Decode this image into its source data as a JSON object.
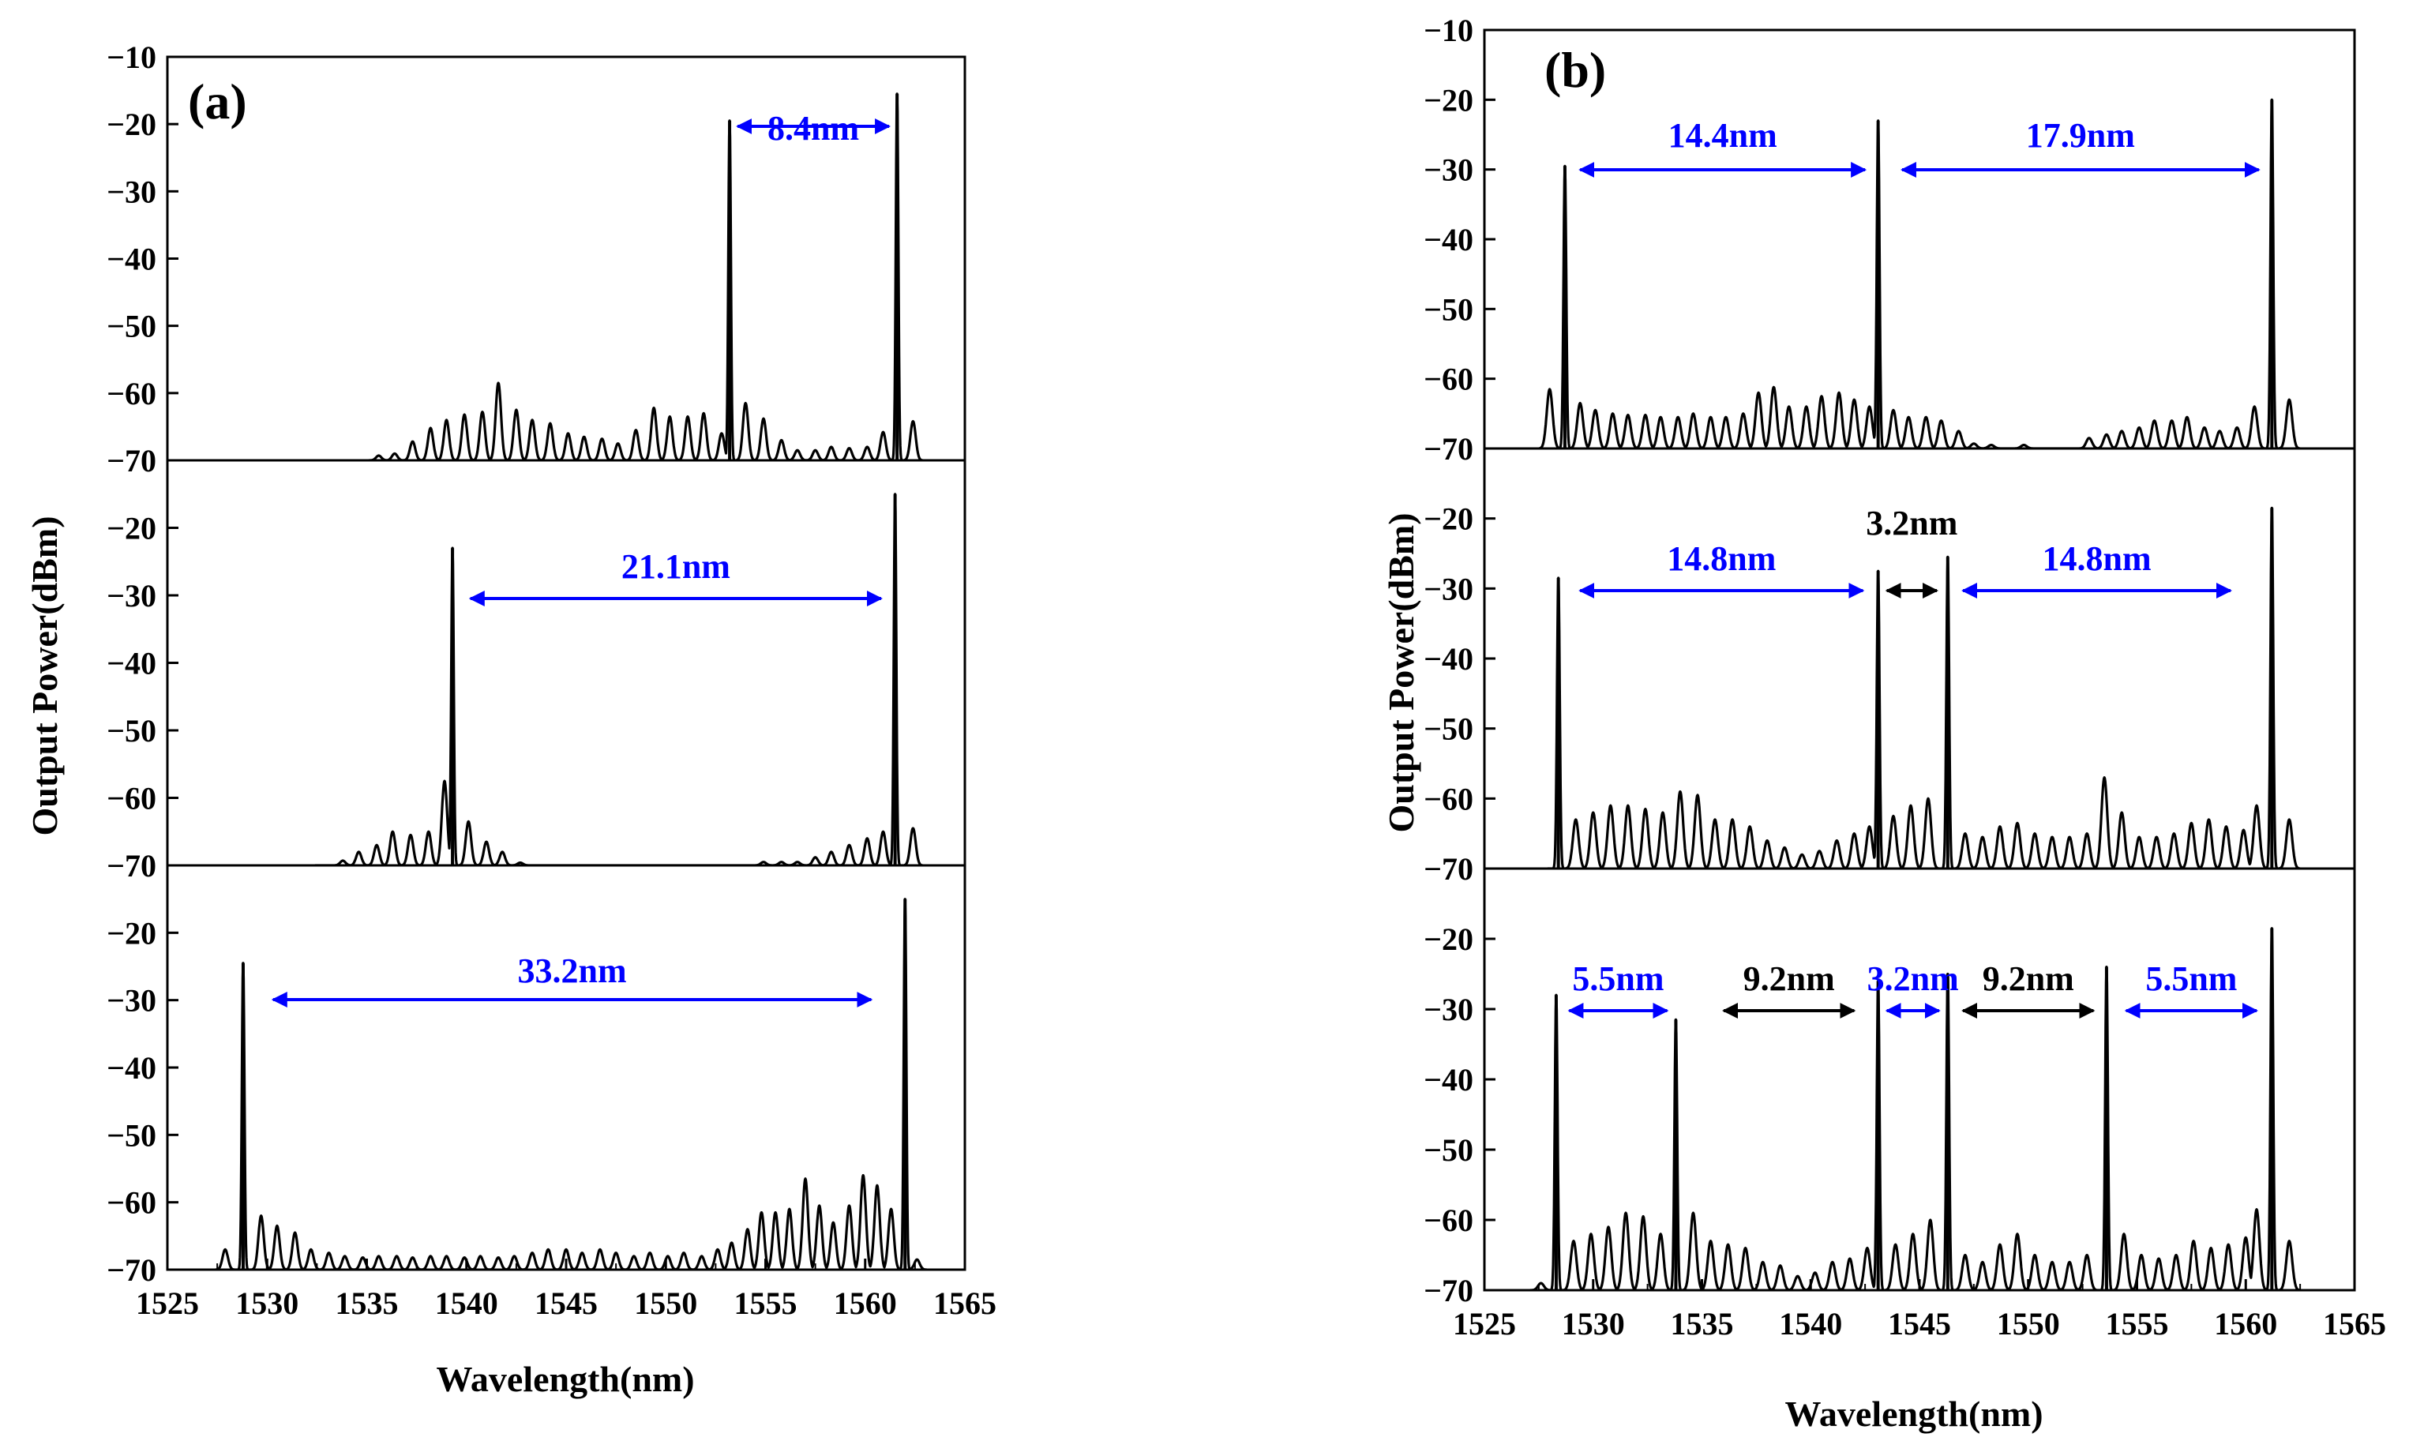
{
  "colors": {
    "spectrum": "#000000",
    "annotation_blue": "#0000ff",
    "annotation_black": "#000000"
  },
  "chart_data": [
    {
      "panel": "(a)",
      "type": "line",
      "xlabel": "Wavelength(nm)",
      "ylabel": "Output Power(dBm)",
      "xlim": [
        1525,
        1565
      ],
      "x_ticks": [
        "1525",
        "1530",
        "1535",
        "1540",
        "1545",
        "1550",
        "1555",
        "1560",
        "1565"
      ],
      "subplots": [
        {
          "name": "a-top",
          "ylim": [
            -70,
            -10
          ],
          "y_ticks": [
            "−10",
            "−20",
            "−30",
            "−40",
            "−50",
            "−60",
            "−70"
          ],
          "main_peaks": [
            {
              "x": 1553.2,
              "y": -19.5
            },
            {
              "x": 1561.6,
              "y": -15.5
            }
          ],
          "side_peaks_x": [
            1535.6,
            1536.4,
            1537.3,
            1538.2,
            1539.0,
            1539.9,
            1540.8,
            1541.6,
            1542.5,
            1543.3,
            1544.2,
            1545.1,
            1545.9,
            1546.8,
            1547.6,
            1548.5,
            1549.4,
            1550.2,
            1551.1,
            1551.9,
            1552.8,
            1554.0,
            1554.9,
            1555.8,
            1556.6,
            1557.5,
            1558.3,
            1559.2,
            1560.1,
            1560.9,
            1562.4
          ],
          "side_peaks_y": [
            -69.3,
            -69.0,
            -67.2,
            -65.2,
            -64.0,
            -63.2,
            -62.8,
            -58.5,
            -62.5,
            -64.0,
            -64.5,
            -66.0,
            -66.5,
            -66.8,
            -67.5,
            -65.5,
            -62.2,
            -63.5,
            -63.5,
            -63.0,
            -66.0,
            -61.5,
            -63.8,
            -67.0,
            -68.5,
            -68.5,
            -68.0,
            -68.2,
            -68.0,
            -65.8,
            -64.2
          ],
          "annotations": [
            {
              "text": "8.4nm",
              "color": "blue",
              "arrow_from": 1553.6,
              "arrow_to": 1561.2
            }
          ]
        },
        {
          "name": "a-mid",
          "ylim": [
            -70,
            -10
          ],
          "y_ticks": [
            "−20",
            "−30",
            "−40",
            "−50",
            "−60",
            "−70"
          ],
          "main_peaks": [
            {
              "x": 1539.3,
              "y": -23.0
            },
            {
              "x": 1561.5,
              "y": -15.0
            }
          ],
          "side_peaks_x": [
            1532.9,
            1533.8,
            1534.6,
            1535.5,
            1536.3,
            1537.2,
            1538.1,
            1538.9,
            1540.1,
            1541.0,
            1541.8,
            1542.7,
            1554.9,
            1555.8,
            1556.6,
            1557.5,
            1558.3,
            1559.2,
            1560.1,
            1560.9,
            1562.4
          ],
          "side_peaks_y": [
            -70.0,
            -69.3,
            -68.0,
            -67.0,
            -65.0,
            -65.5,
            -65.0,
            -57.5,
            -63.5,
            -66.5,
            -68.0,
            -69.6,
            -69.5,
            -69.5,
            -69.5,
            -68.8,
            -68.0,
            -67.0,
            -66.0,
            -65.0,
            -64.5
          ],
          "annotations": [
            {
              "text": "21.1nm",
              "color": "blue",
              "arrow_from": 1540.2,
              "arrow_to": 1560.8
            }
          ]
        },
        {
          "name": "a-bot",
          "ylim": [
            -70,
            -10
          ],
          "y_ticks": [
            "−20",
            "−30",
            "−40",
            "−50",
            "−60",
            "−70"
          ],
          "main_peaks": [
            {
              "x": 1528.8,
              "y": -24.5
            },
            {
              "x": 1562.0,
              "y": -15.0
            }
          ],
          "side_peaks_x": [
            1527.9,
            1529.7,
            1530.5,
            1531.4,
            1532.2,
            1533.1,
            1533.9,
            1534.8,
            1535.6,
            1536.5,
            1537.3,
            1538.2,
            1539.0,
            1539.9,
            1540.7,
            1541.6,
            1542.4,
            1543.3,
            1544.1,
            1545.0,
            1545.8,
            1546.7,
            1547.5,
            1548.4,
            1549.2,
            1550.1,
            1550.9,
            1551.8,
            1552.6,
            1553.3,
            1554.1,
            1554.8,
            1555.5,
            1556.2,
            1557.0,
            1557.7,
            1558.4,
            1559.2,
            1559.9,
            1560.6,
            1561.3,
            1562.6
          ],
          "side_peaks_y": [
            -67.0,
            -62.0,
            -63.5,
            -64.5,
            -67.0,
            -67.5,
            -68.0,
            -68.2,
            -68.0,
            -68.0,
            -68.2,
            -68.0,
            -68.0,
            -68.2,
            -68.0,
            -68.2,
            -68.0,
            -67.5,
            -67.0,
            -67.0,
            -67.5,
            -67.0,
            -67.5,
            -68.0,
            -67.5,
            -68.0,
            -67.5,
            -68.0,
            -67.0,
            -66.0,
            -64.0,
            -61.5,
            -61.5,
            -61.0,
            -56.5,
            -60.5,
            -63.0,
            -60.5,
            -56.0,
            -57.5,
            -61.0,
            -68.5
          ],
          "annotations": [
            {
              "text": "33.2nm",
              "color": "blue",
              "arrow_from": 1530.3,
              "arrow_to": 1560.3
            }
          ]
        }
      ]
    },
    {
      "panel": "(b)",
      "type": "line",
      "xlabel": "Wavelength(nm)",
      "ylabel": "Output Power(dBm)",
      "xlim": [
        1525,
        1565
      ],
      "x_ticks": [
        "1525",
        "1530",
        "1535",
        "1540",
        "1545",
        "1550",
        "1555",
        "1560",
        "1565"
      ],
      "subplots": [
        {
          "name": "b-top",
          "ylim": [
            -70,
            -10
          ],
          "y_ticks": [
            "−10",
            "−20",
            "−30",
            "−40",
            "−50",
            "−60",
            "−70"
          ],
          "main_peaks": [
            {
              "x": 1528.7,
              "y": -29.5
            },
            {
              "x": 1543.1,
              "y": -23.0
            },
            {
              "x": 1561.2,
              "y": -20.0
            }
          ],
          "side_peaks_x": [
            1528.0,
            1529.4,
            1530.1,
            1530.9,
            1531.6,
            1532.4,
            1533.1,
            1533.9,
            1534.6,
            1535.4,
            1536.1,
            1536.9,
            1537.6,
            1538.3,
            1539.0,
            1539.8,
            1540.5,
            1541.3,
            1542.0,
            1542.7,
            1543.8,
            1544.5,
            1545.3,
            1546.0,
            1546.8,
            1547.5,
            1548.3,
            1549.8,
            1552.8,
            1553.6,
            1554.3,
            1555.1,
            1555.8,
            1556.6,
            1557.3,
            1558.1,
            1558.8,
            1559.6,
            1560.4,
            1562.0
          ],
          "side_peaks_y": [
            -61.5,
            -63.5,
            -64.5,
            -65.0,
            -65.2,
            -65.2,
            -65.5,
            -65.5,
            -65.0,
            -65.5,
            -65.5,
            -65.0,
            -62.0,
            -61.2,
            -64.0,
            -64.0,
            -62.5,
            -62.0,
            -63.0,
            -64.0,
            -64.5,
            -65.5,
            -65.5,
            -66.0,
            -67.5,
            -69.3,
            -69.5,
            -69.5,
            -68.5,
            -68.0,
            -67.5,
            -67.0,
            -66.0,
            -66.0,
            -65.5,
            -67.0,
            -67.5,
            -67.0,
            -64.0,
            -63.0
          ],
          "annotations": [
            {
              "text": "14.4nm",
              "color": "blue",
              "arrow_from": 1529.4,
              "arrow_to": 1542.5
            },
            {
              "text": "17.9nm",
              "color": "blue",
              "arrow_from": 1544.2,
              "arrow_to": 1560.6
            }
          ]
        },
        {
          "name": "b-mid",
          "ylim": [
            -70,
            -10
          ],
          "y_ticks": [
            "−20",
            "−30",
            "−40",
            "−50",
            "−60",
            "−70"
          ],
          "main_peaks": [
            {
              "x": 1528.4,
              "y": -28.5
            },
            {
              "x": 1543.1,
              "y": -27.5
            },
            {
              "x": 1546.3,
              "y": -25.5
            },
            {
              "x": 1561.2,
              "y": -18.5
            }
          ],
          "side_peaks_x": [
            1529.2,
            1530.0,
            1530.8,
            1531.6,
            1532.4,
            1533.2,
            1534.0,
            1534.8,
            1535.6,
            1536.4,
            1537.2,
            1538.0,
            1538.8,
            1539.6,
            1540.4,
            1541.2,
            1542.0,
            1542.7,
            1543.8,
            1544.6,
            1545.4,
            1547.1,
            1547.9,
            1548.7,
            1549.5,
            1550.3,
            1551.1,
            1551.9,
            1552.7,
            1553.5,
            1554.3,
            1555.1,
            1555.9,
            1556.7,
            1557.5,
            1558.3,
            1559.1,
            1559.9,
            1560.5,
            1562.0
          ],
          "side_peaks_y": [
            -63.0,
            -62.0,
            -61.0,
            -61.0,
            -61.5,
            -62.0,
            -59.0,
            -59.5,
            -63.0,
            -63.0,
            -64.0,
            -66.0,
            -67.0,
            -68.0,
            -67.5,
            -66.0,
            -65.0,
            -64.0,
            -62.5,
            -61.0,
            -60.0,
            -65.0,
            -65.5,
            -64.0,
            -63.5,
            -65.0,
            -65.5,
            -65.5,
            -65.0,
            -57.0,
            -62.0,
            -65.5,
            -65.5,
            -65.0,
            -63.5,
            -63.0,
            -64.0,
            -64.5,
            -61.0,
            -63.0
          ],
          "annotations": [
            {
              "text": "14.8nm",
              "color": "blue",
              "arrow_from": 1529.4,
              "arrow_to": 1542.4
            },
            {
              "text": "3.2nm",
              "color": "black",
              "arrow_from": 1543.5,
              "arrow_to": 1545.8
            },
            {
              "text": "14.8nm",
              "color": "blue",
              "arrow_from": 1547.0,
              "arrow_to": 1559.3
            }
          ]
        },
        {
          "name": "b-bot",
          "ylim": [
            -70,
            -10
          ],
          "y_ticks": [
            "−20",
            "−30",
            "−40",
            "−50",
            "−60",
            "−70"
          ],
          "main_peaks": [
            {
              "x": 1528.3,
              "y": -28.0
            },
            {
              "x": 1533.8,
              "y": -31.5
            },
            {
              "x": 1543.1,
              "y": -26.0
            },
            {
              "x": 1546.3,
              "y": -25.0
            },
            {
              "x": 1553.6,
              "y": -24.0
            },
            {
              "x": 1561.2,
              "y": -18.5
            }
          ],
          "side_peaks_x": [
            1527.6,
            1529.1,
            1529.9,
            1530.7,
            1531.5,
            1532.3,
            1533.1,
            1534.6,
            1535.4,
            1536.2,
            1537.0,
            1537.8,
            1538.6,
            1539.4,
            1540.2,
            1541.0,
            1541.8,
            1542.6,
            1543.9,
            1544.7,
            1545.5,
            1547.1,
            1547.9,
            1548.7,
            1549.5,
            1550.3,
            1551.1,
            1551.9,
            1552.7,
            1554.4,
            1555.2,
            1556.0,
            1556.8,
            1557.6,
            1558.4,
            1559.2,
            1560.0,
            1560.5,
            1562.0
          ],
          "side_peaks_y": [
            -69.0,
            -63.0,
            -62.0,
            -61.0,
            -59.0,
            -59.5,
            -62.0,
            -59.0,
            -63.0,
            -63.5,
            -64.0,
            -66.0,
            -66.5,
            -68.0,
            -67.5,
            -66.0,
            -65.5,
            -64.0,
            -63.5,
            -62.0,
            -60.0,
            -65.0,
            -66.0,
            -63.5,
            -62.0,
            -65.0,
            -66.0,
            -66.0,
            -65.0,
            -62.0,
            -65.0,
            -65.5,
            -65.0,
            -63.0,
            -64.0,
            -63.5,
            -62.5,
            -58.5,
            -63.0
          ],
          "annotations": [
            {
              "text": "5.5nm",
              "color": "blue",
              "arrow_from": 1528.9,
              "arrow_to": 1533.4
            },
            {
              "text": "9.2nm",
              "color": "black",
              "arrow_from": 1536.0,
              "arrow_to": 1542.0
            },
            {
              "text": "3.2nm",
              "color": "blue",
              "arrow_from": 1543.5,
              "arrow_to": 1545.9
            },
            {
              "text": "9.2nm",
              "color": "black",
              "arrow_from": 1547.0,
              "arrow_to": 1553.0
            },
            {
              "text": "5.5nm",
              "color": "blue",
              "arrow_from": 1554.5,
              "arrow_to": 1560.5
            }
          ]
        }
      ]
    }
  ]
}
